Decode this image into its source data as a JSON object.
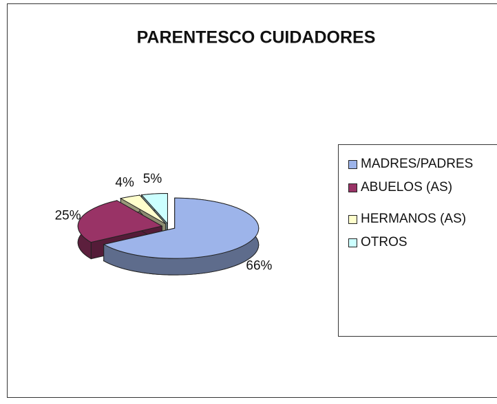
{
  "chart_data": {
    "type": "pie3d",
    "title": "PARENTESCO CUIDADORES",
    "categories": [
      "MADRES/PADRES",
      "ABUELOS (AS)",
      "HERMANOS (AS)",
      "OTROS"
    ],
    "values": [
      66,
      25,
      4,
      5
    ],
    "value_labels": [
      "66%",
      "25%",
      "4%",
      "5%"
    ],
    "colors": [
      "#9db4ea",
      "#993366",
      "#ffffcc",
      "#ccffff"
    ],
    "legend": "right"
  }
}
